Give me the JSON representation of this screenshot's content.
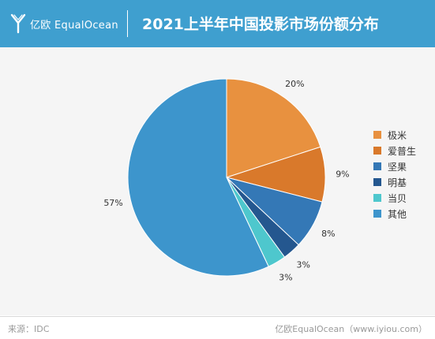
{
  "header": {
    "logo_text": "亿欧 EqualOcean",
    "title": "2021上半年中国投影市场份额分布",
    "background_color": "#3f9fcf"
  },
  "chart_data": {
    "type": "pie",
    "title": "2021上半年中国投影市场份额分布",
    "categories": [
      "极米",
      "爱普生",
      "坚果",
      "明基",
      "当贝",
      "其他"
    ],
    "values": [
      20,
      9,
      8,
      3,
      3,
      57
    ],
    "labels": [
      "20%",
      "9%",
      "8%",
      "3%",
      "3%",
      "57%"
    ],
    "colors": [
      "#e8913f",
      "#d9792b",
      "#3478b6",
      "#24578f",
      "#4ec7cd",
      "#3d95cc"
    ],
    "legend_position": "right"
  },
  "footer": {
    "source": "来源：IDC",
    "credit": "亿欧EqualOcean（www.iyiou.com）"
  }
}
